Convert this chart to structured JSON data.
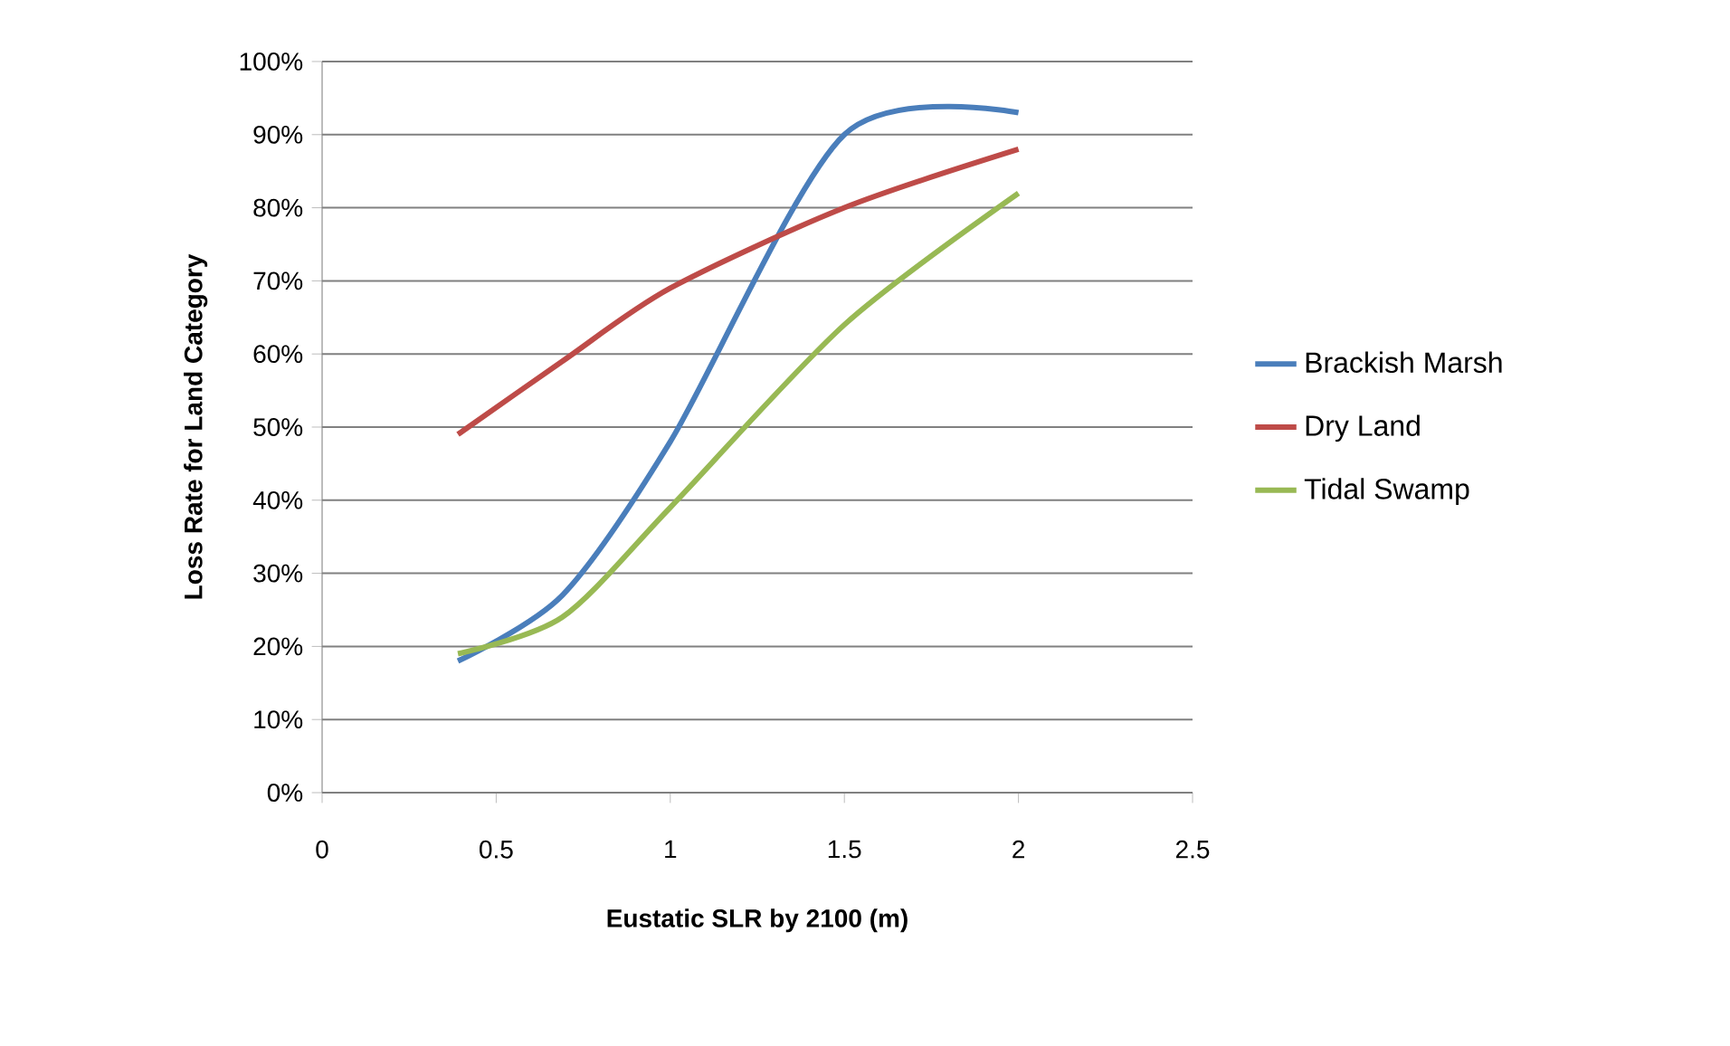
{
  "chart_data": {
    "type": "line",
    "xlabel": "Eustatic SLR by 2100 (m)",
    "ylabel": "Loss Rate for Land Category",
    "xlim": [
      0,
      2.5
    ],
    "xticks": [
      0,
      0.5,
      1,
      1.5,
      2,
      2.5
    ],
    "ylim": [
      0,
      100
    ],
    "yticks": [
      {
        "value": 0,
        "label": "0%"
      },
      {
        "value": 10,
        "label": "10%"
      },
      {
        "value": 20,
        "label": "20%"
      },
      {
        "value": 30,
        "label": "30%"
      },
      {
        "value": 40,
        "label": "40%"
      },
      {
        "value": 50,
        "label": "50%"
      },
      {
        "value": 60,
        "label": "60%"
      },
      {
        "value": 70,
        "label": "70%"
      },
      {
        "value": 80,
        "label": "80%"
      },
      {
        "value": 90,
        "label": "90%"
      },
      {
        "value": 100,
        "label": "100%"
      }
    ],
    "grid": "y",
    "legend": "right",
    "marker": "none",
    "line_style": "solid",
    "x": [
      0.39,
      0.69,
      1.0,
      1.5,
      2.0
    ],
    "series": [
      {
        "name": "Brackish Marsh",
        "color": "#4a7ebb",
        "values": [
          18,
          27,
          48,
          90,
          93
        ]
      },
      {
        "name": "Dry Land",
        "color": "#be4b48",
        "values": [
          49,
          59,
          69,
          80,
          88
        ]
      },
      {
        "name": "Tidal Swamp",
        "color": "#98b954",
        "values": [
          19,
          24,
          39,
          64,
          82
        ]
      }
    ]
  }
}
